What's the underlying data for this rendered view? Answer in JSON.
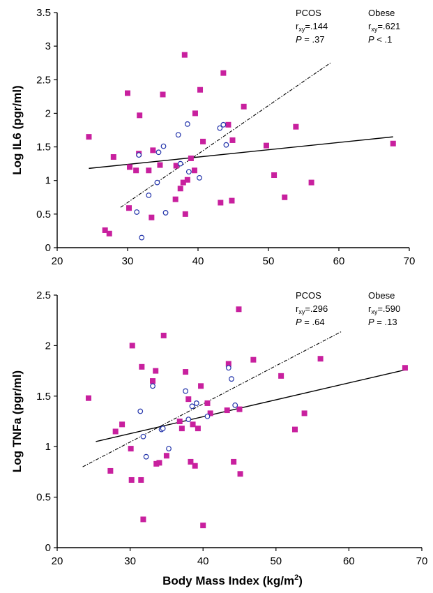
{
  "chart_data": [
    {
      "type": "scatter",
      "title": "",
      "xlabel": "",
      "ylabel": "Log IL6 (pgr/ml)",
      "xlim": [
        20,
        70
      ],
      "ylim": [
        0,
        3.5
      ],
      "xticks": [
        "20",
        "30",
        "40",
        "50",
        "60",
        "70"
      ],
      "yticks": [
        "0",
        "0.5",
        "1",
        "1.5",
        "2",
        "2.5",
        "3",
        "3.5"
      ],
      "grid": false,
      "annotations": [
        {
          "group": "PCOS",
          "r_label": "r",
          "r_sub": "xy",
          "r_value": "=.144",
          "p_label": "P",
          "p_value": " = .37"
        },
        {
          "group": "Obese",
          "r_label": "r",
          "r_sub": "xy",
          "r_value": "=.621",
          "p_label": "P",
          "p_value": " < .1"
        }
      ],
      "series": [
        {
          "marker": "filled-square",
          "color": "#c8209e",
          "points": [
            [
              24.5,
              1.65
            ],
            [
              26.8,
              0.26
            ],
            [
              27.4,
              0.21
            ],
            [
              28,
              1.35
            ],
            [
              30,
              2.3
            ],
            [
              30.2,
              0.59
            ],
            [
              30.3,
              1.2
            ],
            [
              31.2,
              1.15
            ],
            [
              31.6,
              1.4
            ],
            [
              31.7,
              1.97
            ],
            [
              33,
              1.15
            ],
            [
              33.4,
              0.45
            ],
            [
              33.6,
              1.45
            ],
            [
              34.6,
              1.23
            ],
            [
              35,
              2.28
            ],
            [
              36.8,
              0.72
            ],
            [
              36.9,
              1.22
            ],
            [
              37.5,
              0.88
            ],
            [
              37.9,
              0.97
            ],
            [
              38.1,
              2.87
            ],
            [
              38.2,
              0.5
            ],
            [
              38.5,
              1.01
            ],
            [
              39,
              1.33
            ],
            [
              39.5,
              1.15
            ],
            [
              39.6,
              2.0
            ],
            [
              40.3,
              2.35
            ],
            [
              40.7,
              1.58
            ],
            [
              43.2,
              0.67
            ],
            [
              43.6,
              2.6
            ],
            [
              44.3,
              1.83
            ],
            [
              44.8,
              0.7
            ],
            [
              44.9,
              1.6
            ],
            [
              46.5,
              2.1
            ],
            [
              49.7,
              1.52
            ],
            [
              50.8,
              1.08
            ],
            [
              52.3,
              0.75
            ],
            [
              53.9,
              1.8
            ],
            [
              56.1,
              0.97
            ],
            [
              67.7,
              1.55
            ]
          ]
        },
        {
          "marker": "open-circle",
          "color": "#2233aa",
          "points": [
            [
              31.3,
              0.53
            ],
            [
              31.6,
              1.38
            ],
            [
              32,
              0.15
            ],
            [
              33,
              0.78
            ],
            [
              34.2,
              0.97
            ],
            [
              34.4,
              1.42
            ],
            [
              35.1,
              1.51
            ],
            [
              35.4,
              0.52
            ],
            [
              37.2,
              1.68
            ],
            [
              37.5,
              1.25
            ],
            [
              38.5,
              1.84
            ],
            [
              38.7,
              1.13
            ],
            [
              40.2,
              1.04
            ],
            [
              43.1,
              1.78
            ],
            [
              43.6,
              1.83
            ],
            [
              44,
              1.53
            ]
          ]
        }
      ],
      "trendlines": [
        {
          "style": "solid",
          "x": [
            24.5,
            67.7
          ],
          "y": [
            1.18,
            1.65
          ]
        },
        {
          "style": "dash-dot",
          "x": [
            29,
            58.8
          ],
          "y": [
            0.6,
            2.75
          ]
        }
      ]
    },
    {
      "type": "scatter",
      "title": "",
      "xlabel": "Body Mass Index (kg/m²)",
      "xlabel_text": "Body Mass Index (kg/m",
      "xlabel_sup": "2",
      "xlabel_close": ")",
      "ylabel": "Log TNFa (pgr/ml)",
      "xlim": [
        20,
        70
      ],
      "ylim": [
        0,
        2.5
      ],
      "xticks": [
        "20",
        "30",
        "40",
        "50",
        "60",
        "70"
      ],
      "yticks": [
        "0",
        "0.5",
        "1",
        "1.5",
        "2",
        "2.5"
      ],
      "grid": false,
      "annotations": [
        {
          "group": "PCOS",
          "r_label": "r",
          "r_sub": "xy",
          "r_value": "=.296",
          "p_label": "P",
          "p_value": " = .64"
        },
        {
          "group": "Obese",
          "r_label": "r",
          "r_sub": "xy",
          "r_value": "=.590",
          "p_label": "P",
          "p_value": " = .13"
        }
      ],
      "series": [
        {
          "marker": "filled-square",
          "color": "#c8209e",
          "points": [
            [
              24.3,
              1.48
            ],
            [
              27.3,
              0.76
            ],
            [
              28,
              1.15
            ],
            [
              28.9,
              1.22
            ],
            [
              30.1,
              0.98
            ],
            [
              30.2,
              0.67
            ],
            [
              30.3,
              2.0
            ],
            [
              31.5,
              0.67
            ],
            [
              31.6,
              1.79
            ],
            [
              31.8,
              0.28
            ],
            [
              33.1,
              1.65
            ],
            [
              33.5,
              1.75
            ],
            [
              33.6,
              0.83
            ],
            [
              34,
              0.84
            ],
            [
              34.6,
              2.1
            ],
            [
              35,
              0.91
            ],
            [
              36.8,
              1.25
            ],
            [
              37.1,
              1.18
            ],
            [
              37.6,
              1.74
            ],
            [
              38,
              1.47
            ],
            [
              38.3,
              0.85
            ],
            [
              38.6,
              1.22
            ],
            [
              38.9,
              0.81
            ],
            [
              39.3,
              1.18
            ],
            [
              39.7,
              1.6
            ],
            [
              40,
              0.22
            ],
            [
              40.6,
              1.43
            ],
            [
              41,
              1.33
            ],
            [
              43.3,
              1.36
            ],
            [
              43.5,
              1.82
            ],
            [
              44.2,
              0.85
            ],
            [
              44.9,
              2.36
            ],
            [
              45,
              1.37
            ],
            [
              45.1,
              0.73
            ],
            [
              46.9,
              1.86
            ],
            [
              50.7,
              1.7
            ],
            [
              52.6,
              1.17
            ],
            [
              53.9,
              1.33
            ],
            [
              56.1,
              1.87
            ],
            [
              67.7,
              1.78
            ]
          ]
        },
        {
          "marker": "open-circle",
          "color": "#2233aa",
          "points": [
            [
              31.4,
              1.35
            ],
            [
              31.8,
              1.1
            ],
            [
              32.2,
              0.9
            ],
            [
              33.1,
              1.6
            ],
            [
              34.3,
              1.17
            ],
            [
              34.5,
              1.18
            ],
            [
              35.3,
              0.98
            ],
            [
              37.6,
              1.55
            ],
            [
              38,
              1.27
            ],
            [
              38.5,
              1.4
            ],
            [
              39.1,
              1.43
            ],
            [
              40.6,
              1.3
            ],
            [
              43.5,
              1.78
            ],
            [
              43.9,
              1.67
            ],
            [
              44.4,
              1.41
            ]
          ]
        }
      ],
      "trendlines": [
        {
          "style": "solid",
          "x": [
            25.3,
            67.7
          ],
          "y": [
            1.05,
            1.76
          ]
        },
        {
          "style": "dash-dot",
          "x": [
            23.5,
            59
          ],
          "y": [
            0.8,
            2.14
          ]
        }
      ]
    }
  ]
}
